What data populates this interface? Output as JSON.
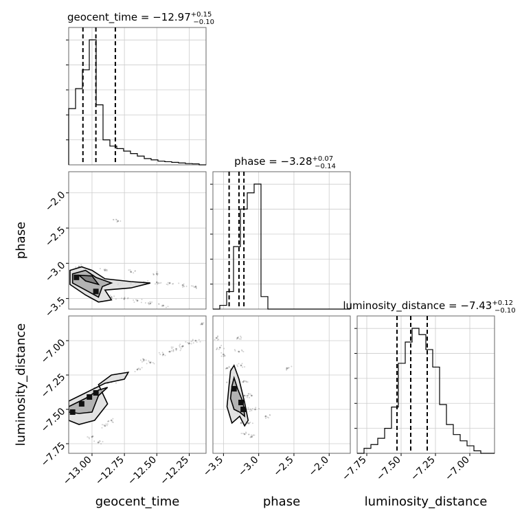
{
  "chart_data": {
    "type": "corner",
    "parameters": [
      {
        "name": "geocent_time",
        "median": "−12.97",
        "err_plus": "+0.15",
        "err_minus": "−0.10",
        "quantiles": [
          -13.07,
          -12.97,
          -12.82
        ],
        "range": [
          -13.18,
          -12.12
        ],
        "ticks": [
          -13.0,
          -12.75,
          -12.5,
          -12.25
        ],
        "tick_labels": [
          "−13.00",
          "−12.75",
          "−12.50",
          "−12.25"
        ],
        "hist_density": [
          0.45,
          0.61,
          0.76,
          1.0,
          0.48,
          0.2,
          0.15,
          0.13,
          0.11,
          0.09,
          0.07,
          0.05,
          0.04,
          0.03,
          0.025,
          0.02,
          0.015,
          0.01,
          0.008,
          0.0
        ]
      },
      {
        "name": "phase",
        "median": "−3.28",
        "err_plus": "+0.07",
        "err_minus": "−0.14",
        "quantiles": [
          -3.42,
          -3.28,
          -3.21
        ],
        "range": [
          -3.65,
          -1.7
        ],
        "ticks": [
          -3.5,
          -3.0,
          -2.5,
          -2.0
        ],
        "tick_labels": [
          "−3.5",
          "−3.0",
          "−2.5",
          "−2.0"
        ],
        "hist_density": [
          0.0,
          0.03,
          0.14,
          0.5,
          0.8,
          0.93,
          1.0,
          0.1,
          0.0,
          0.0,
          0.0,
          0.0,
          0.0,
          0.0,
          0.0,
          0.0,
          0.0,
          0.0,
          0.0,
          0.0
        ]
      },
      {
        "name": "luminosity_distance",
        "median": "−7.43",
        "err_plus": "+0.12",
        "err_minus": "−0.10",
        "quantiles": [
          -7.53,
          -7.43,
          -7.31
        ],
        "range": [
          -7.82,
          -6.82
        ],
        "ticks": [
          -7.75,
          -7.5,
          -7.25,
          -7.0
        ],
        "tick_labels": [
          "−7.75",
          "−7.50",
          "−7.25",
          "−7.00"
        ],
        "hist_density": [
          0.0,
          0.04,
          0.07,
          0.12,
          0.2,
          0.37,
          0.72,
          0.89,
          1.0,
          0.95,
          0.83,
          0.69,
          0.39,
          0.23,
          0.15,
          0.1,
          0.06,
          0.02,
          0.0,
          0.0
        ]
      }
    ],
    "pairs": [
      {
        "x": "geocent_time",
        "y": "phase",
        "points": [
          [
            -13.1,
            -3.2
          ],
          [
            -13.05,
            -3.22
          ],
          [
            -13.0,
            -3.18
          ],
          [
            -12.95,
            -3.28
          ],
          [
            -12.9,
            -3.3
          ],
          [
            -12.8,
            -3.3
          ],
          [
            -12.7,
            -3.29
          ],
          [
            -12.6,
            -3.27
          ],
          [
            -12.5,
            -3.27
          ],
          [
            -12.4,
            -3.28
          ],
          [
            -12.3,
            -3.31
          ],
          [
            -12.2,
            -3.33
          ],
          [
            -12.95,
            -3.45
          ],
          [
            -12.85,
            -3.48
          ],
          [
            -12.75,
            -3.5
          ],
          [
            -12.65,
            -3.53
          ],
          [
            -12.55,
            -3.57
          ],
          [
            -12.45,
            -3.6
          ],
          [
            -13.1,
            -3.05
          ],
          [
            -12.9,
            -3.1
          ],
          [
            -12.7,
            -3.12
          ],
          [
            -12.5,
            -3.15
          ],
          [
            -12.8,
            -2.4
          ]
        ],
        "hot_points": [
          [
            -13.12,
            -3.2
          ],
          [
            -12.97,
            -3.4
          ]
        ],
        "contours": [
          [
            [
              -13.17,
              -3.1
            ],
            [
              -13.08,
              -3.05
            ],
            [
              -13.0,
              -3.1
            ],
            [
              -12.9,
              -3.22
            ],
            [
              -12.7,
              -3.26
            ],
            [
              -12.55,
              -3.28
            ],
            [
              -12.7,
              -3.35
            ],
            [
              -12.9,
              -3.38
            ],
            [
              -12.85,
              -3.52
            ],
            [
              -12.95,
              -3.55
            ],
            [
              -13.05,
              -3.45
            ],
            [
              -13.17,
              -3.3
            ]
          ],
          [
            [
              -13.15,
              -3.15
            ],
            [
              -13.05,
              -3.1
            ],
            [
              -12.97,
              -3.2
            ],
            [
              -12.85,
              -3.28
            ],
            [
              -12.92,
              -3.33
            ],
            [
              -12.95,
              -3.48
            ],
            [
              -13.03,
              -3.4
            ],
            [
              -13.15,
              -3.28
            ]
          ],
          [
            [
              -13.1,
              -3.17
            ],
            [
              -13.0,
              -3.18
            ],
            [
              -12.95,
              -3.3
            ],
            [
              -13.05,
              -3.25
            ]
          ]
        ]
      },
      {
        "x": "geocent_time",
        "y": "luminosity_distance",
        "points": [
          [
            -13.15,
            -7.5
          ],
          [
            -13.1,
            -7.45
          ],
          [
            -13.05,
            -7.42
          ],
          [
            -13.0,
            -7.38
          ],
          [
            -12.95,
            -7.35
          ],
          [
            -12.85,
            -7.3
          ],
          [
            -12.75,
            -7.26
          ],
          [
            -12.65,
            -7.21
          ],
          [
            -12.55,
            -7.16
          ],
          [
            -12.45,
            -7.1
          ],
          [
            -12.35,
            -7.06
          ],
          [
            -12.25,
            -7.02
          ],
          [
            -12.6,
            -7.14
          ],
          [
            -12.4,
            -7.08
          ],
          [
            -12.3,
            -7.04
          ],
          [
            -12.2,
            -7.0
          ],
          [
            -12.15,
            -6.88
          ],
          [
            -13.1,
            -7.6
          ],
          [
            -13.0,
            -7.7
          ],
          [
            -12.95,
            -7.74
          ],
          [
            -12.9,
            -7.62
          ],
          [
            -12.85,
            -7.58
          ]
        ],
        "hot_points": [
          [
            -13.08,
            -7.46
          ],
          [
            -13.02,
            -7.41
          ],
          [
            -12.97,
            -7.38
          ],
          [
            -13.15,
            -7.52
          ]
        ],
        "contours": [
          [
            [
              -13.18,
              -7.44
            ],
            [
              -13.05,
              -7.38
            ],
            [
              -12.9,
              -7.31
            ],
            [
              -12.75,
              -7.28
            ],
            [
              -12.72,
              -7.23
            ],
            [
              -12.85,
              -7.25
            ],
            [
              -12.95,
              -7.32
            ],
            [
              -12.88,
              -7.46
            ],
            [
              -12.98,
              -7.58
            ],
            [
              -13.1,
              -7.61
            ],
            [
              -13.18,
              -7.58
            ]
          ],
          [
            [
              -13.18,
              -7.48
            ],
            [
              -13.05,
              -7.42
            ],
            [
              -12.95,
              -7.36
            ],
            [
              -12.88,
              -7.34
            ],
            [
              -12.95,
              -7.4
            ],
            [
              -13.0,
              -7.52
            ],
            [
              -13.1,
              -7.53
            ],
            [
              -13.18,
              -7.52
            ]
          ]
        ]
      },
      {
        "x": "phase",
        "y": "luminosity_distance",
        "points": [
          [
            -3.6,
            -6.98
          ],
          [
            -3.55,
            -7.05
          ],
          [
            -3.5,
            -7.1
          ],
          [
            -3.45,
            -7.2
          ],
          [
            -3.4,
            -7.3
          ],
          [
            -3.35,
            -7.4
          ],
          [
            -3.3,
            -7.52
          ],
          [
            -3.25,
            -7.6
          ],
          [
            -3.2,
            -7.68
          ],
          [
            -3.3,
            -6.98
          ],
          [
            -3.28,
            -7.08
          ],
          [
            -3.25,
            -7.18
          ],
          [
            -3.22,
            -7.3
          ],
          [
            -3.2,
            -7.4
          ],
          [
            -3.18,
            -7.5
          ],
          [
            -3.15,
            -7.6
          ],
          [
            -3.1,
            -7.7
          ],
          [
            -3.1,
            -7.4
          ],
          [
            -3.05,
            -7.5
          ],
          [
            -2.6,
            -7.2
          ],
          [
            -2.9,
            -7.55
          ]
        ],
        "hot_points": [
          [
            -3.35,
            -7.35
          ],
          [
            -3.25,
            -7.45
          ],
          [
            -3.22,
            -7.5
          ]
        ],
        "contours": [
          [
            [
              -3.42,
              -7.32
            ],
            [
              -3.4,
              -7.22
            ],
            [
              -3.35,
              -7.18
            ],
            [
              -3.28,
              -7.28
            ],
            [
              -3.2,
              -7.45
            ],
            [
              -3.15,
              -7.58
            ],
            [
              -3.2,
              -7.62
            ],
            [
              -3.27,
              -7.55
            ],
            [
              -3.38,
              -7.6
            ],
            [
              -3.45,
              -7.48
            ]
          ],
          [
            [
              -3.38,
              -7.33
            ],
            [
              -3.35,
              -7.27
            ],
            [
              -3.3,
              -7.35
            ],
            [
              -3.22,
              -7.45
            ],
            [
              -3.2,
              -7.55
            ],
            [
              -3.27,
              -7.52
            ],
            [
              -3.35,
              -7.5
            ],
            [
              -3.4,
              -7.42
            ]
          ]
        ]
      }
    ],
    "grid": true,
    "quantile_line_style": "dashed"
  }
}
